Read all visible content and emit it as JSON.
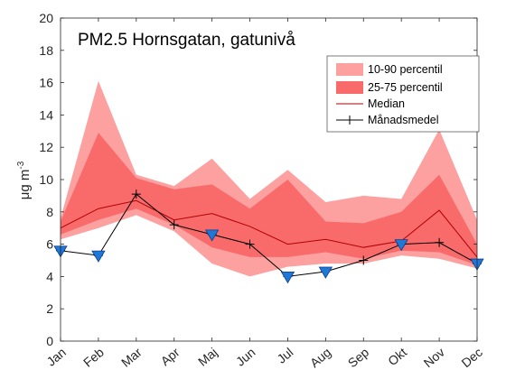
{
  "chart_data": {
    "type": "area",
    "title": "PM2.5 Hornsgatan, gatunivå",
    "ylabel_main": "μg m",
    "ylabel_sup": "-3",
    "xlabel": "",
    "ylim": [
      0,
      20
    ],
    "yticks": [
      0,
      2,
      4,
      6,
      8,
      10,
      12,
      14,
      16,
      18,
      20
    ],
    "categories": [
      "Jan",
      "Feb",
      "Mar",
      "Apr",
      "Maj",
      "Jun",
      "Jul",
      "Aug",
      "Sep",
      "Okt",
      "Nov",
      "Dec"
    ],
    "legend_position": "top-right",
    "grid": false,
    "series": [
      {
        "name": "10-90 percentil",
        "kind": "band",
        "color": "#fca0a0",
        "lower": [
          6.3,
          7.0,
          7.8,
          6.8,
          4.8,
          4.0,
          4.6,
          4.8,
          4.8,
          5.3,
          5.1,
          4.5
        ],
        "upper": [
          7.6,
          16.1,
          10.3,
          9.6,
          11.3,
          8.8,
          10.6,
          8.6,
          9.0,
          8.8,
          13.1,
          7.5
        ]
      },
      {
        "name": "25-75 percentil",
        "kind": "band",
        "color": "#f96b6b",
        "lower": [
          6.6,
          7.5,
          8.2,
          7.2,
          5.8,
          5.2,
          5.2,
          5.5,
          5.1,
          5.6,
          5.5,
          4.7
        ],
        "upper": [
          7.4,
          12.9,
          10.1,
          9.4,
          9.7,
          8.2,
          10.0,
          7.4,
          7.3,
          8.0,
          10.3,
          6.0
        ]
      },
      {
        "name": "Median",
        "kind": "line",
        "color": "#b00000",
        "values": [
          7.0,
          8.2,
          8.7,
          7.5,
          7.9,
          7.1,
          6.0,
          6.3,
          5.8,
          6.2,
          8.1,
          5.2
        ]
      },
      {
        "name": "Månadsmedel",
        "kind": "line_marker",
        "color": "#000000",
        "values": [
          5.6,
          5.3,
          9.1,
          7.2,
          6.6,
          6.0,
          4.0,
          4.3,
          5.0,
          6.0,
          6.1,
          4.8
        ]
      }
    ],
    "highlight_markers": {
      "color": "#1f77d8",
      "points": [
        {
          "month": "Jan",
          "value": 5.6
        },
        {
          "month": "Feb",
          "value": 5.3
        },
        {
          "month": "Maj",
          "value": 6.6
        },
        {
          "month": "Jul",
          "value": 4.0
        },
        {
          "month": "Aug",
          "value": 4.3
        },
        {
          "month": "Okt",
          "value": 6.0
        },
        {
          "month": "Dec",
          "value": 4.8
        }
      ]
    }
  }
}
